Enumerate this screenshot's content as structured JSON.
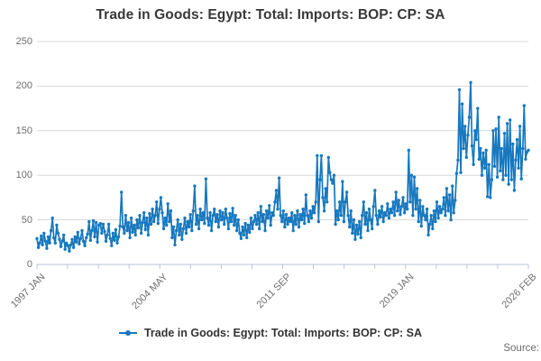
{
  "title": "Trade in Goods: Egypt: Total: Imports: BOP: CP: SA",
  "legend": {
    "label": "Trade in Goods: Egypt: Total: Imports: BOP: CP: SA"
  },
  "source": {
    "label": "Source:"
  },
  "colors": {
    "line": "#1778be",
    "grid": "#d8d8d8",
    "axis": "#b7c3d9",
    "muted_text": "#6e6e71",
    "title_text": "#383838",
    "background": "#ffffff"
  },
  "chart_data": {
    "type": "line",
    "title": "Trade in Goods: Egypt: Total: Imports: BOP: CP: SA",
    "series_name": "Trade in Goods: Egypt: Total: Imports: BOP: CP: SA",
    "x_frequency": "monthly",
    "x_start": "1997 JAN",
    "x_end": "2026 FEB",
    "x_tick_labels": [
      "1997 JAN",
      "2004 MAY",
      "2011 SEP",
      "2019 JAN",
      "2026 FEB"
    ],
    "minor_ticks_between_labels": 3,
    "y_ticks": [
      0,
      50,
      100,
      150,
      200,
      250
    ],
    "ylim": [
      0,
      250
    ],
    "grid": "horizontal",
    "legend_position": "bottom-center",
    "values": [
      29,
      19,
      24,
      32,
      22,
      35,
      26,
      18,
      31,
      24,
      38,
      52,
      30,
      24,
      44,
      35,
      28,
      20,
      26,
      33,
      17,
      24,
      21,
      15,
      22,
      28,
      19,
      31,
      25,
      36,
      23,
      29,
      38,
      26,
      21,
      30,
      34,
      48,
      27,
      38,
      49,
      31,
      47,
      25,
      44,
      46,
      35,
      45,
      37,
      26,
      33,
      45,
      29,
      21,
      35,
      27,
      39,
      24,
      31,
      43,
      81,
      42,
      35,
      55,
      38,
      47,
      30,
      52,
      36,
      44,
      33,
      50,
      41,
      55,
      35,
      47,
      58,
      39,
      52,
      33,
      57,
      45,
      62,
      48,
      55,
      70,
      46,
      62,
      75,
      58,
      40,
      52,
      44,
      68,
      48,
      60,
      30,
      42,
      22,
      38,
      50,
      33,
      45,
      28,
      40,
      52,
      35,
      48,
      42,
      56,
      38,
      60,
      88,
      45,
      55,
      40,
      62,
      50,
      58,
      46,
      96,
      52,
      44,
      58,
      38,
      55,
      62,
      48,
      56,
      42,
      60,
      50,
      58,
      45,
      62,
      52,
      40,
      57,
      48,
      63,
      44,
      55,
      38,
      50,
      35,
      29,
      42,
      33,
      46,
      30,
      44,
      36,
      52,
      40,
      48,
      55,
      45,
      58,
      40,
      65,
      48,
      56,
      38,
      60,
      52,
      66,
      44,
      58,
      55,
      70,
      83,
      62,
      97,
      55,
      48,
      60,
      42,
      56,
      45,
      52,
      48,
      58,
      38,
      55,
      45,
      60,
      42,
      56,
      50,
      62,
      46,
      78,
      55,
      48,
      60,
      52,
      65,
      58,
      70,
      122,
      48,
      95,
      122,
      75,
      60,
      85,
      70,
      120,
      103,
      95,
      91,
      100,
      45,
      60,
      50,
      70,
      55,
      93,
      48,
      70,
      81,
      55,
      42,
      60,
      35,
      50,
      28,
      44,
      34,
      48,
      30,
      55,
      70,
      45,
      58,
      38,
      62,
      50,
      40,
      65,
      83,
      55,
      45,
      60,
      53,
      65,
      48,
      58,
      55,
      68,
      52,
      62,
      58,
      70,
      55,
      81,
      60,
      72,
      56,
      65,
      75,
      58,
      68,
      62,
      128,
      70,
      100,
      55,
      98,
      62,
      85,
      48,
      72,
      43,
      65,
      55,
      50,
      62,
      33,
      45,
      55,
      40,
      60,
      48,
      70,
      52,
      65,
      58,
      62,
      75,
      55,
      85,
      60,
      78,
      50,
      88,
      58,
      72,
      102,
      117,
      196,
      103,
      180,
      130,
      155,
      120,
      145,
      165,
      204,
      133,
      112,
      150,
      140,
      175,
      118,
      130,
      100,
      125,
      108,
      128,
      76,
      112,
      75,
      95,
      150,
      110,
      152,
      98,
      165,
      105,
      130,
      95,
      147,
      100,
      158,
      90,
      162,
      95,
      135,
      83,
      117,
      140,
      108,
      155,
      96,
      130,
      178,
      118,
      126,
      128
    ]
  }
}
